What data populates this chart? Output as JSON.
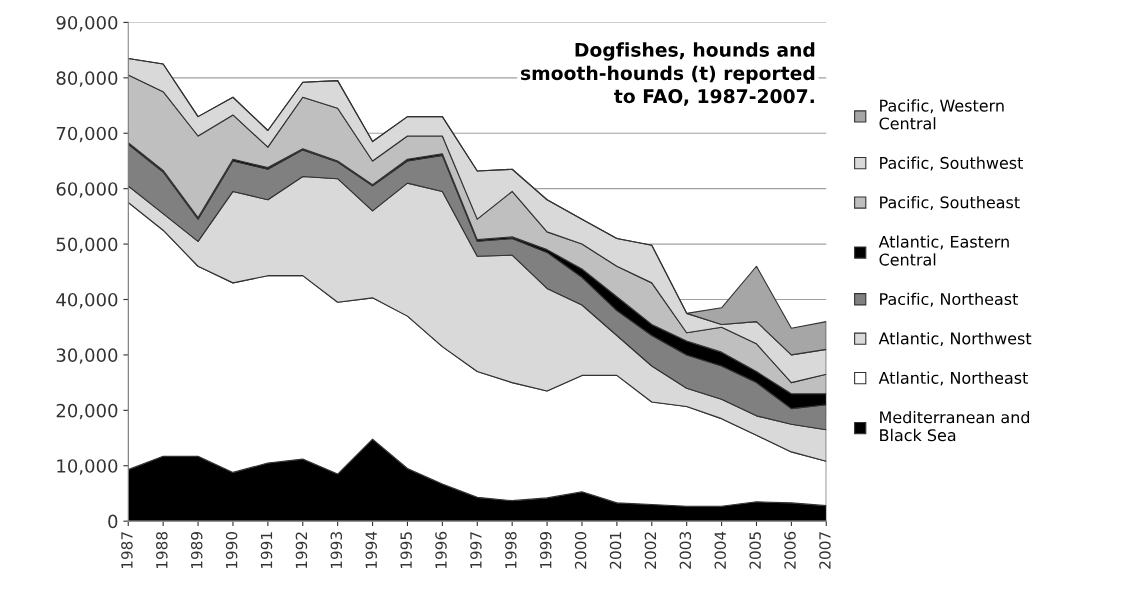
{
  "chart_data": {
    "type": "area",
    "stacked": true,
    "title": "Dogfishes, hounds and\nsmooth-hounds (t) reported\nto FAO, 1987-2007.",
    "categories": [
      "1987",
      "1988",
      "1989",
      "1990",
      "1991",
      "1992",
      "1993",
      "1994",
      "1995",
      "1996",
      "1997",
      "1998",
      "1999",
      "2000",
      "2001",
      "2002",
      "2003",
      "2004",
      "2005",
      "2006",
      "2007"
    ],
    "series": [
      {
        "name": "Mediterranean and Black Sea",
        "color": "#000000",
        "values": [
          9300,
          11700,
          11700,
          8800,
          10500,
          11200,
          8500,
          14800,
          9500,
          6700,
          4300,
          3700,
          4200,
          5300,
          3300,
          3000,
          2700,
          2700,
          3500,
          3300,
          2800
        ]
      },
      {
        "name": "Atlantic, Northeast",
        "color": "#ffffff",
        "values": [
          48200,
          40800,
          34300,
          34200,
          33800,
          33100,
          31000,
          25500,
          27500,
          24800,
          22700,
          21300,
          19300,
          21000,
          23000,
          18500,
          18000,
          15800,
          12000,
          9200,
          8000
        ]
      },
      {
        "name": "Atlantic, Northwest",
        "color": "#d9d9d9",
        "values": [
          3000,
          3000,
          4500,
          16500,
          13700,
          17900,
          22300,
          15700,
          24000,
          28000,
          20800,
          23000,
          18500,
          12700,
          7200,
          6500,
          3300,
          3500,
          3500,
          5000,
          5700
        ]
      },
      {
        "name": "Pacific, Northeast",
        "color": "#808080",
        "values": [
          7500,
          7500,
          4000,
          5500,
          5500,
          4800,
          3000,
          4500,
          4000,
          6500,
          2700,
          3000,
          6500,
          5000,
          4500,
          5500,
          6000,
          6000,
          6000,
          2800,
          4500
        ]
      },
      {
        "name": "Atlantic, Eastern Central",
        "color": "#000000",
        "values": [
          300,
          300,
          300,
          300,
          300,
          200,
          200,
          200,
          300,
          300,
          300,
          300,
          500,
          1500,
          2500,
          2000,
          2500,
          2500,
          2000,
          2700,
          2000
        ]
      },
      {
        "name": "Pacific, Southeast",
        "color": "#bfbfbf",
        "values": [
          12200,
          14200,
          14700,
          8000,
          3700,
          9300,
          9500,
          4300,
          4200,
          3200,
          3700,
          8200,
          3200,
          4500,
          5500,
          7500,
          1500,
          4500,
          5000,
          2000,
          3500
        ]
      },
      {
        "name": "Pacific, Southwest",
        "color": "#d9d9d9",
        "values": [
          3000,
          5000,
          3500,
          3200,
          3000,
          2700,
          5000,
          3500,
          3500,
          3500,
          8700,
          4000,
          5800,
          4500,
          5000,
          6800,
          3500,
          500,
          4000,
          5000,
          4500
        ]
      },
      {
        "name": "Pacific, Western Central",
        "color": "#a6a6a6",
        "values": [
          0,
          0,
          0,
          0,
          0,
          0,
          0,
          0,
          0,
          0,
          0,
          0,
          0,
          0,
          0,
          0,
          0,
          3000,
          10000,
          4800,
          5000
        ]
      }
    ],
    "ylim": [
      0,
      90000
    ],
    "yticks": [
      {
        "value": 0,
        "label": "0"
      },
      {
        "value": 10000,
        "label": "10,000"
      },
      {
        "value": 20000,
        "label": "20,000"
      },
      {
        "value": 30000,
        "label": "30,000"
      },
      {
        "value": 40000,
        "label": "40,000"
      },
      {
        "value": 50000,
        "label": "50,000"
      },
      {
        "value": 60000,
        "label": "60,000"
      },
      {
        "value": 70000,
        "label": "70,000"
      },
      {
        "value": 80000,
        "label": "80,000"
      },
      {
        "value": 90000,
        "label": "90,000"
      }
    ],
    "grid": "y",
    "legend": "right"
  }
}
